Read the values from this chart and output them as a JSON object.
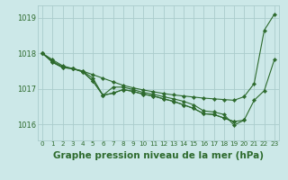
{
  "background_color": "#cce8e8",
  "grid_color": "#aacccc",
  "line_color": "#2d6a2d",
  "marker_color": "#2d6a2d",
  "title": "Graphe pression niveau de la mer (hPa)",
  "title_fontsize": 7.5,
  "yticks": [
    1016,
    1017,
    1018,
    1019
  ],
  "ylim": [
    1015.55,
    1019.35
  ],
  "xlim": [
    -0.5,
    23.5
  ],
  "xtick_labels": [
    "0",
    "1",
    "2",
    "3",
    "4",
    "5",
    "6",
    "7",
    "8",
    "9",
    "10",
    "11",
    "12",
    "13",
    "14",
    "15",
    "16",
    "17",
    "18",
    "19",
    "20",
    "21",
    "22",
    "23"
  ],
  "line1": [
    1018.0,
    1017.82,
    1017.65,
    1017.57,
    1017.5,
    1017.4,
    1017.3,
    1017.2,
    1017.1,
    1017.03,
    1016.97,
    1016.92,
    1016.87,
    1016.83,
    1016.8,
    1016.77,
    1016.74,
    1016.72,
    1016.7,
    1016.68,
    1016.78,
    1017.15,
    1018.65,
    1019.1
  ],
  "line2": [
    1018.0,
    1017.78,
    1017.62,
    1017.57,
    1017.5,
    1017.3,
    1016.82,
    1017.05,
    1017.05,
    1016.98,
    1016.9,
    1016.85,
    1016.78,
    1016.72,
    1016.65,
    1016.55,
    1016.38,
    1016.35,
    1016.28,
    1015.98,
    1016.12,
    1016.68,
    1016.95,
    1017.82
  ],
  "line3": [
    1018.0,
    1017.75,
    1017.6,
    1017.57,
    1017.48,
    1017.22,
    1016.82,
    1016.88,
    1016.98,
    1016.93,
    1016.85,
    1016.8,
    1016.72,
    1016.65,
    1016.55,
    1016.45,
    1016.3,
    1016.28,
    1016.18,
    1016.08,
    1016.12,
    null,
    null,
    null
  ],
  "line4": [
    1018.0,
    1017.75,
    1017.6,
    1017.57,
    1017.48,
    1017.22,
    1016.82,
    1016.88,
    1016.98,
    1016.93,
    1016.85,
    1016.8,
    1016.72,
    1016.65,
    1016.55,
    1016.45,
    1016.3,
    1016.28,
    1016.18,
    1016.08,
    null,
    null,
    null,
    null
  ]
}
